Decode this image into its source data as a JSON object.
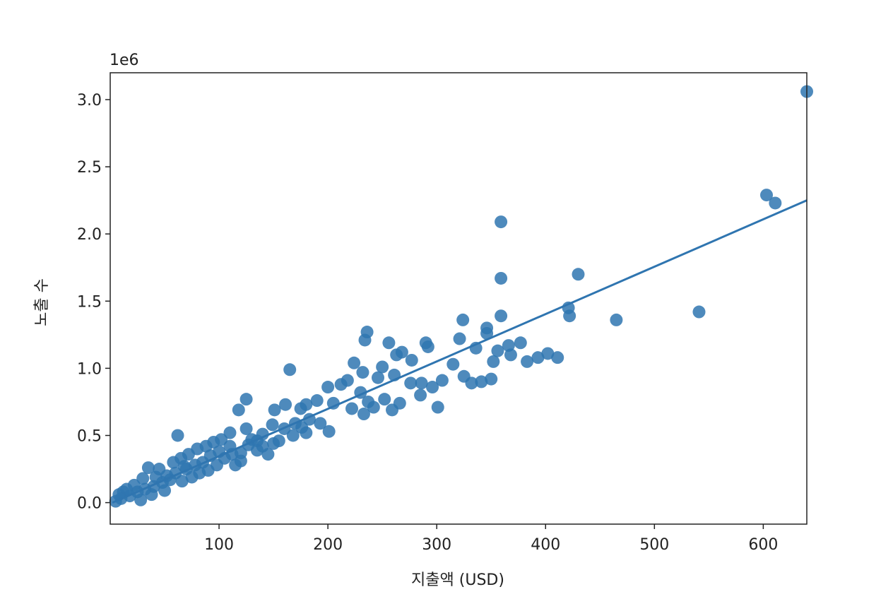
{
  "chart_data": {
    "type": "scatter",
    "offset_text": "1e6",
    "x_label": "지출액 (USD)",
    "y_label": "노출 수",
    "color": "#2f75b0",
    "xlim": [
      0,
      640
    ],
    "ylim": [
      -0.16,
      3.2
    ],
    "xticks": [
      100,
      200,
      300,
      400,
      500,
      600
    ],
    "yticks": [
      {
        "value": 0,
        "label": "0.0"
      },
      0.5,
      {
        "value": 1,
        "label": "1.0"
      },
      1.5,
      {
        "value": 2,
        "label": "2.0"
      },
      2.5,
      {
        "value": 3,
        "label": "3.0"
      }
    ],
    "x": [
      640,
      603,
      611,
      359,
      359,
      430,
      359,
      421,
      422,
      465,
      541,
      324,
      346,
      346,
      236,
      234,
      256,
      268,
      290,
      292,
      321,
      336,
      356,
      366,
      377,
      368,
      352,
      383,
      393,
      402,
      411,
      263,
      277,
      315,
      325,
      332,
      341,
      350,
      165,
      224,
      250,
      232,
      246,
      261,
      286,
      296,
      305,
      276,
      285,
      301,
      200,
      212,
      218,
      230,
      237,
      242,
      252,
      259,
      266,
      222,
      233,
      205,
      190,
      180,
      175,
      161,
      151,
      125,
      118,
      183,
      193,
      201,
      176,
      170,
      160,
      149,
      180,
      168,
      155,
      140,
      130,
      127,
      62,
      110,
      100,
      92,
      85,
      78,
      70,
      60,
      55,
      48,
      40,
      32,
      25,
      18,
      10,
      5,
      15,
      30,
      45,
      65,
      80,
      95,
      105,
      120,
      135,
      145,
      115,
      90,
      75,
      50,
      38,
      22,
      28,
      12,
      8,
      35,
      58,
      72,
      88,
      102,
      110,
      125,
      135,
      120,
      98,
      82,
      66,
      52,
      42,
      68,
      112,
      140,
      150
    ],
    "values": [
      3.06,
      2.29,
      2.23,
      2.09,
      1.67,
      1.7,
      1.39,
      1.45,
      1.39,
      1.36,
      1.42,
      1.36,
      1.3,
      1.26,
      1.27,
      1.21,
      1.19,
      1.12,
      1.19,
      1.16,
      1.22,
      1.15,
      1.13,
      1.17,
      1.19,
      1.1,
      1.05,
      1.05,
      1.08,
      1.11,
      1.08,
      1.1,
      1.06,
      1.03,
      0.94,
      0.89,
      0.9,
      0.92,
      0.99,
      1.04,
      1.01,
      0.97,
      0.93,
      0.95,
      0.89,
      0.86,
      0.91,
      0.89,
      0.8,
      0.71,
      0.86,
      0.88,
      0.91,
      0.82,
      0.75,
      0.71,
      0.77,
      0.69,
      0.74,
      0.7,
      0.66,
      0.74,
      0.76,
      0.73,
      0.7,
      0.73,
      0.69,
      0.77,
      0.69,
      0.62,
      0.59,
      0.53,
      0.56,
      0.59,
      0.55,
      0.58,
      0.52,
      0.5,
      0.46,
      0.51,
      0.47,
      0.43,
      0.5,
      0.42,
      0.38,
      0.35,
      0.3,
      0.28,
      0.25,
      0.22,
      0.17,
      0.15,
      0.12,
      0.1,
      0.08,
      0.05,
      0.03,
      0.01,
      0.1,
      0.18,
      0.25,
      0.33,
      0.4,
      0.45,
      0.33,
      0.37,
      0.39,
      0.36,
      0.28,
      0.24,
      0.19,
      0.09,
      0.06,
      0.13,
      0.02,
      0.08,
      0.06,
      0.26,
      0.3,
      0.36,
      0.42,
      0.47,
      0.52,
      0.55,
      0.46,
      0.31,
      0.28,
      0.22,
      0.16,
      0.2,
      0.19,
      0.27,
      0.36,
      0.42,
      0.44
    ],
    "regression": {
      "x": [
        2,
        640
      ],
      "values": [
        0.0,
        2.25
      ]
    }
  }
}
